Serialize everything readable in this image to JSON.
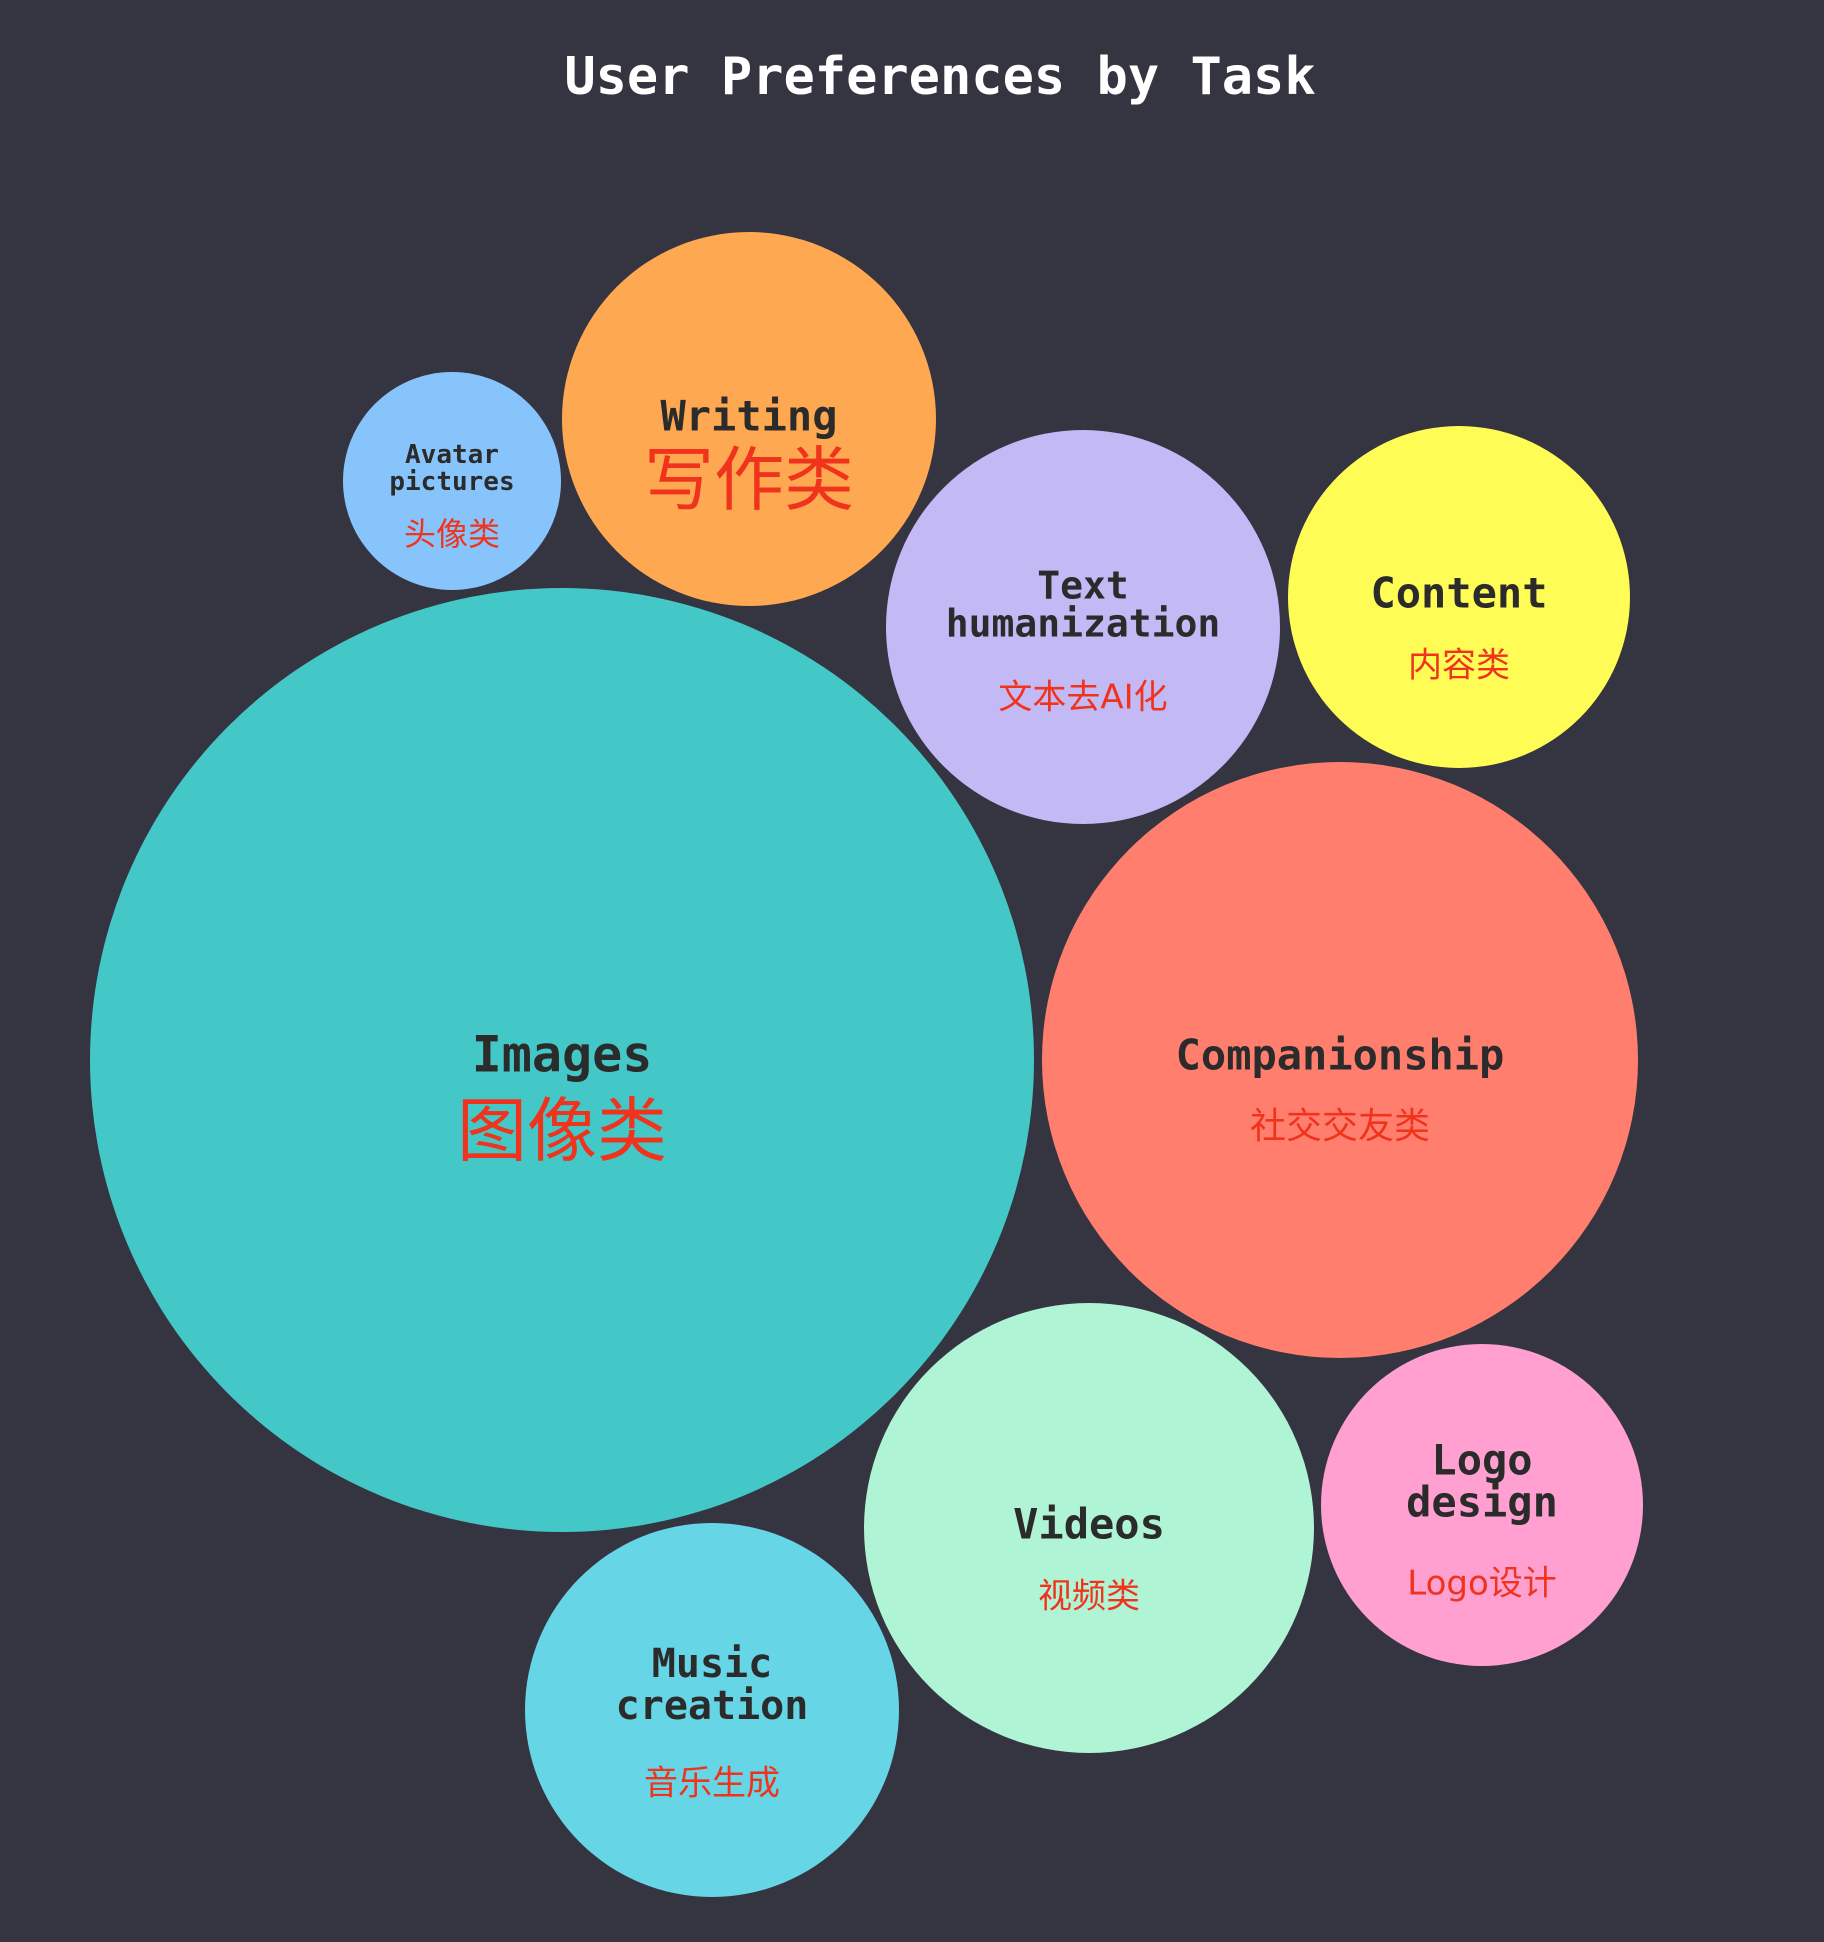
{
  "chart_data": {
    "type": "bubble",
    "title": "User Preferences by Task",
    "bubbles": [
      {
        "id": "images",
        "label_en": [
          "Images"
        ],
        "label_zh": "图像类",
        "color": "#44c7c7"
      },
      {
        "id": "companionship",
        "label_en": [
          "Companionship"
        ],
        "label_zh": "社交交友类",
        "color": "#ff7e6e"
      },
      {
        "id": "writing",
        "label_en": [
          "Writing"
        ],
        "label_zh": "写作类",
        "color": "#ffa852"
      },
      {
        "id": "text-humanization",
        "label_en": [
          "Text",
          "humanization"
        ],
        "label_zh": "文本去AI化",
        "color": "#c3b9f5"
      },
      {
        "id": "content",
        "label_en": [
          "Content"
        ],
        "label_zh": "内容类",
        "color": "#fffc55"
      },
      {
        "id": "videos",
        "label_en": [
          "Videos"
        ],
        "label_zh": "视频类",
        "color": "#b0f4d6"
      },
      {
        "id": "music-creation",
        "label_en": [
          "Music",
          "creation"
        ],
        "label_zh": "音乐生成",
        "color": "#66d5e6"
      },
      {
        "id": "logo-design",
        "label_en": [
          "Logo",
          "design"
        ],
        "label_zh": "Logo设计",
        "color": "#ffa0d0"
      },
      {
        "id": "avatar-pictures",
        "label_en": [
          "Avatar",
          "pictures"
        ],
        "label_zh": "头像类",
        "color": "#88c4fc"
      }
    ]
  },
  "colors": {
    "background": "#353441",
    "title": "#ffffff",
    "label_en": "#2b2b2b",
    "label_zh": "#f0331c"
  }
}
